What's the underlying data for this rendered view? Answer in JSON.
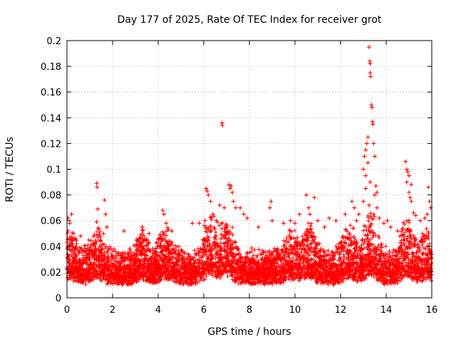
{
  "chart_data": {
    "type": "scatter",
    "title": "Day 177 of 2025, Rate Of TEC Index for receiver grot",
    "xlabel": "GPS time / hours",
    "ylabel": "ROTI / TECUs",
    "xlim": [
      0,
      16
    ],
    "ylim": [
      0,
      0.2
    ],
    "x_ticks": [
      "0",
      "2",
      "4",
      "6",
      "8",
      "10",
      "12",
      "14",
      "16"
    ],
    "y_ticks": [
      "0",
      "0.02",
      "0.04",
      "0.06",
      "0.08",
      "0.1",
      "0.12",
      "0.14",
      "0.16",
      "0.18",
      "0.2"
    ],
    "grid": true,
    "marker": "+",
    "color": "#ff0000",
    "series": [
      {
        "points": [
          [
            0.05,
            0.062
          ],
          [
            0.12,
            0.058
          ],
          [
            0.2,
            0.065
          ],
          [
            0.3,
            0.05
          ],
          [
            0.6,
            0.048
          ],
          [
            1.3,
            0.089
          ],
          [
            1.32,
            0.086
          ],
          [
            1.35,
            0.069
          ],
          [
            1.3,
            0.059
          ],
          [
            1.65,
            0.076
          ],
          [
            1.7,
            0.065
          ],
          [
            1.75,
            0.055
          ],
          [
            1.6,
            0.05
          ],
          [
            2.5,
            0.052
          ],
          [
            3.3,
            0.055
          ],
          [
            3.6,
            0.05
          ],
          [
            4.2,
            0.068
          ],
          [
            4.25,
            0.065
          ],
          [
            4.35,
            0.058
          ],
          [
            4.6,
            0.052
          ],
          [
            5.5,
            0.058
          ],
          [
            5.8,
            0.058
          ],
          [
            6.1,
            0.085
          ],
          [
            6.15,
            0.083
          ],
          [
            6.2,
            0.08
          ],
          [
            6.3,
            0.075
          ],
          [
            6.05,
            0.06
          ],
          [
            6.4,
            0.065
          ],
          [
            6.55,
            0.06
          ],
          [
            6.7,
            0.072
          ],
          [
            6.8,
            0.136
          ],
          [
            6.82,
            0.134
          ],
          [
            6.9,
            0.07
          ],
          [
            7.1,
            0.088
          ],
          [
            7.15,
            0.085
          ],
          [
            7.2,
            0.087
          ],
          [
            7.25,
            0.082
          ],
          [
            7.3,
            0.075
          ],
          [
            7.4,
            0.07
          ],
          [
            7.6,
            0.07
          ],
          [
            7.75,
            0.065
          ],
          [
            7.9,
            0.062
          ],
          [
            8.4,
            0.055
          ],
          [
            8.95,
            0.075
          ],
          [
            8.9,
            0.07
          ],
          [
            9.0,
            0.06
          ],
          [
            9.5,
            0.058
          ],
          [
            9.8,
            0.06
          ],
          [
            10.0,
            0.058
          ],
          [
            10.2,
            0.065
          ],
          [
            10.5,
            0.08
          ],
          [
            10.6,
            0.07
          ],
          [
            10.65,
            0.065
          ],
          [
            10.85,
            0.078
          ],
          [
            11.0,
            0.06
          ],
          [
            11.3,
            0.055
          ],
          [
            11.5,
            0.062
          ],
          [
            11.8,
            0.06
          ],
          [
            12.2,
            0.065
          ],
          [
            12.5,
            0.075
          ],
          [
            12.6,
            0.07
          ],
          [
            12.7,
            0.06
          ],
          [
            12.8,
            0.065
          ],
          [
            13.0,
            0.1
          ],
          [
            13.05,
            0.11
          ],
          [
            13.1,
            0.115
          ],
          [
            13.15,
            0.12
          ],
          [
            13.2,
            0.125
          ],
          [
            13.25,
            0.195
          ],
          [
            13.28,
            0.184
          ],
          [
            13.3,
            0.182
          ],
          [
            13.3,
            0.175
          ],
          [
            13.32,
            0.172
          ],
          [
            13.35,
            0.15
          ],
          [
            13.38,
            0.148
          ],
          [
            13.4,
            0.137
          ],
          [
            13.42,
            0.135
          ],
          [
            13.45,
            0.12
          ],
          [
            13.5,
            0.11
          ],
          [
            13.2,
            0.105
          ],
          [
            13.1,
            0.095
          ],
          [
            13.3,
            0.09
          ],
          [
            13.55,
            0.087
          ],
          [
            13.6,
            0.082
          ],
          [
            13.5,
            0.08
          ],
          [
            13.1,
            0.085
          ],
          [
            13.0,
            0.075
          ],
          [
            13.25,
            0.072
          ],
          [
            13.6,
            0.07
          ],
          [
            13.45,
            0.065
          ],
          [
            13.7,
            0.062
          ],
          [
            13.9,
            0.058
          ],
          [
            14.05,
            0.06
          ],
          [
            14.2,
            0.055
          ],
          [
            14.5,
            0.052
          ],
          [
            14.85,
            0.106
          ],
          [
            14.9,
            0.1
          ],
          [
            14.95,
            0.098
          ],
          [
            15.0,
            0.095
          ],
          [
            14.9,
            0.09
          ],
          [
            15.1,
            0.088
          ],
          [
            15.0,
            0.082
          ],
          [
            15.05,
            0.078
          ],
          [
            15.1,
            0.075
          ],
          [
            15.2,
            0.066
          ],
          [
            15.3,
            0.064
          ],
          [
            15.5,
            0.06
          ],
          [
            15.7,
            0.062
          ],
          [
            15.85,
            0.086
          ],
          [
            15.9,
            0.075
          ],
          [
            15.95,
            0.07
          ],
          [
            15.8,
            0.065
          ]
        ]
      }
    ]
  }
}
